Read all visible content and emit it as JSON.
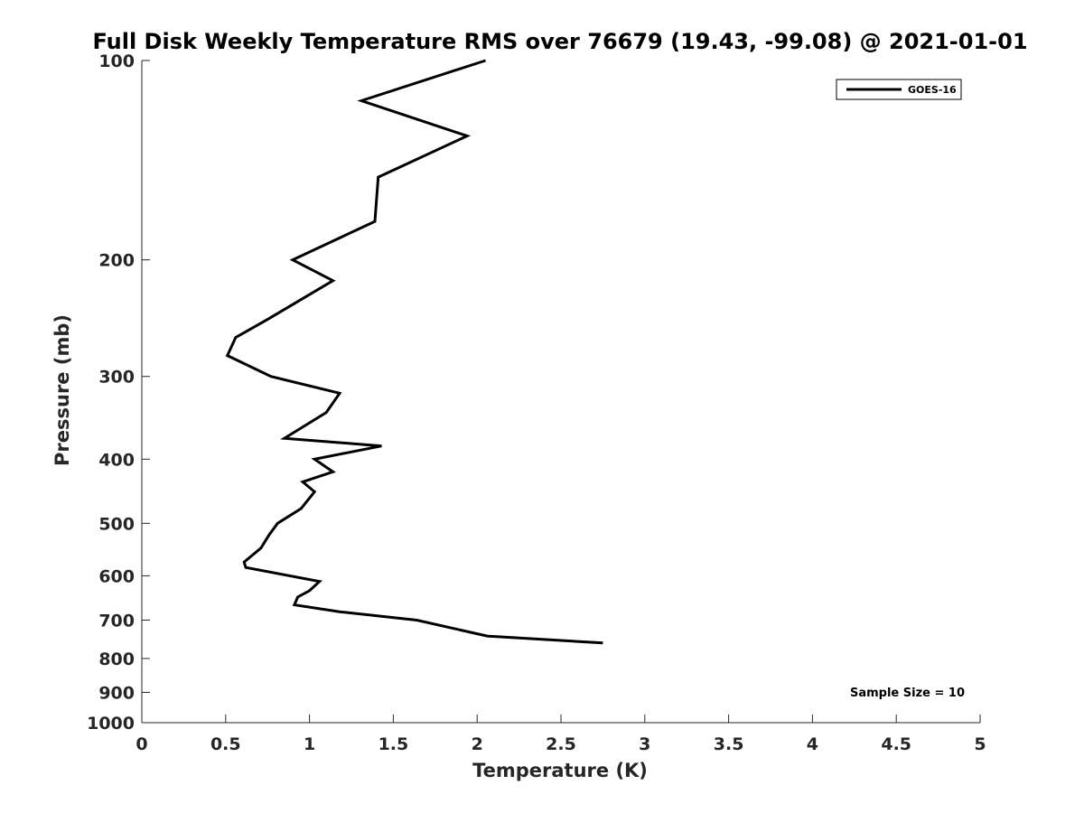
{
  "chart_data": {
    "type": "line",
    "title": "Full Disk Weekly Temperature RMS over 76679 (19.43, -99.08) @ 2021-01-01",
    "xlabel": "Temperature (K)",
    "ylabel": "Pressure (mb)",
    "xlim": [
      0,
      5
    ],
    "ylim": [
      100,
      1000
    ],
    "y_scale": "log",
    "y_reversed": true,
    "grid": false,
    "legend_position": "top-right",
    "x_ticks": [
      0,
      0.5,
      1,
      1.5,
      2,
      2.5,
      3,
      3.5,
      4,
      4.5,
      5
    ],
    "x_tick_labels": [
      "0",
      "0.5",
      "1",
      "1.5",
      "2",
      "2.5",
      "3",
      "3.5",
      "4",
      "4.5",
      "5"
    ],
    "y_ticks": [
      100,
      200,
      300,
      400,
      500,
      600,
      700,
      800,
      900,
      1000
    ],
    "y_tick_labels": [
      "100",
      "200",
      "300",
      "400",
      "500",
      "600",
      "700",
      "800",
      "900",
      "1000"
    ],
    "series": [
      {
        "name": "GOES-16",
        "color": "#000000",
        "x": [
          2.05,
          1.31,
          1.94,
          1.41,
          1.39,
          0.9,
          1.14,
          0.75,
          0.56,
          0.51,
          0.77,
          1.18,
          1.1,
          0.85,
          1.43,
          1.03,
          1.14,
          0.96,
          1.03,
          0.95,
          0.81,
          0.76,
          0.71,
          0.61,
          0.62,
          1.06,
          1.0,
          0.93,
          0.91,
          1.18,
          1.64,
          2.06,
          2.75
        ],
        "y": [
          100,
          115,
          130,
          150,
          175,
          200,
          215,
          246,
          262,
          279,
          300,
          318,
          340,
          372,
          382,
          400,
          418,
          433,
          448,
          475,
          500,
          520,
          545,
          572,
          583,
          612,
          632,
          646,
          664,
          680,
          700,
          740,
          758
        ]
      }
    ],
    "annotation": "Sample Size = 10"
  }
}
